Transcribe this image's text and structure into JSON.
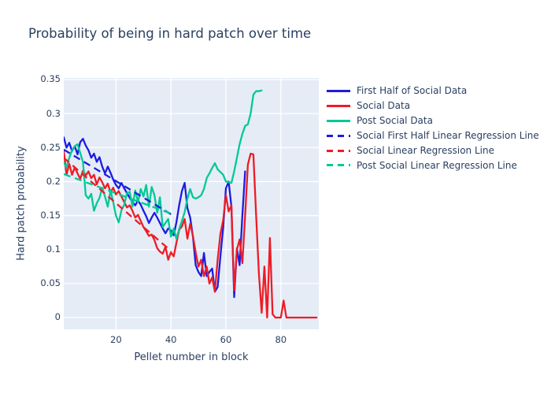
{
  "title": "Probability of being in hard patch over time",
  "colors": {
    "blue": "#1c1ce0",
    "red": "#ee1c25",
    "teal": "#00c996",
    "text": "#2a3f5f",
    "plot_background": "#e5ecf6",
    "gridline": "#ffffff"
  },
  "chart_data": {
    "type": "line",
    "title": "Probability of being in hard patch over time",
    "xlabel": "Pellet number in block",
    "ylabel": "Hard patch probability",
    "xlim": [
      1,
      93.8
    ],
    "ylim": [
      -0.0174,
      0.3523
    ],
    "grid": true,
    "legend_position": "right-outside",
    "x_ticks": [
      {
        "v": 20,
        "label": "20"
      },
      {
        "v": 40,
        "label": "40"
      },
      {
        "v": 60,
        "label": "60"
      },
      {
        "v": 80,
        "label": "80"
      }
    ],
    "y_ticks": [
      {
        "v": 0,
        "label": "0"
      },
      {
        "v": 0.05,
        "label": "0.05"
      },
      {
        "v": 0.1,
        "label": "0.1"
      },
      {
        "v": 0.15,
        "label": "0.15"
      },
      {
        "v": 0.2,
        "label": "0.2"
      },
      {
        "v": 0.25,
        "label": "0.25"
      },
      {
        "v": 0.3,
        "label": "0.3"
      },
      {
        "v": 0.35,
        "label": "0.35"
      }
    ],
    "series": [
      {
        "name": "First Half of Social Data",
        "color": "#1c1ce0",
        "dash": false,
        "x_start": 1,
        "values": [
          0.265,
          0.25,
          0.257,
          0.245,
          0.252,
          0.24,
          0.258,
          0.263,
          0.253,
          0.246,
          0.235,
          0.241,
          0.229,
          0.236,
          0.222,
          0.212,
          0.222,
          0.213,
          0.203,
          0.195,
          0.19,
          0.198,
          0.19,
          0.183,
          0.176,
          0.17,
          0.165,
          0.172,
          0.166,
          0.157,
          0.149,
          0.139,
          0.147,
          0.154,
          0.147,
          0.139,
          0.131,
          0.124,
          0.131,
          0.128,
          0.121,
          0.14,
          0.165,
          0.186,
          0.198,
          0.161,
          0.147,
          0.119,
          0.077,
          0.067,
          0.061,
          0.095,
          0.061,
          0.067,
          0.072,
          0.038,
          0.045,
          0.09,
          0.132,
          0.19,
          0.2,
          0.163,
          0.03,
          0.102,
          0.077,
          0.15,
          0.215
        ]
      },
      {
        "name": "Social Data",
        "color": "#ee1c25",
        "dash": false,
        "x_start": 1,
        "values": [
          0.245,
          0.21,
          0.226,
          0.21,
          0.221,
          0.212,
          0.204,
          0.216,
          0.209,
          0.215,
          0.205,
          0.21,
          0.196,
          0.206,
          0.199,
          0.19,
          0.197,
          0.184,
          0.191,
          0.181,
          0.186,
          0.178,
          0.17,
          0.162,
          0.165,
          0.157,
          0.147,
          0.151,
          0.142,
          0.133,
          0.127,
          0.12,
          0.122,
          0.114,
          0.102,
          0.097,
          0.094,
          0.104,
          0.085,
          0.096,
          0.09,
          0.11,
          0.129,
          0.134,
          0.145,
          0.116,
          0.138,
          0.12,
          0.096,
          0.075,
          0.085,
          0.061,
          0.075,
          0.05,
          0.059,
          0.038,
          0.085,
          0.123,
          0.143,
          0.18,
          0.156,
          0.165,
          0.04,
          0.1,
          0.115,
          0.08,
          0.15,
          0.225,
          0.241,
          0.24,
          0.15,
          0.065,
          0.007,
          0.075,
          0.0,
          0.117,
          0.005,
          0.0,
          0.0,
          0.0,
          0.025,
          0.0,
          0.0,
          0.0,
          0.0,
          0.0,
          0.0,
          0.0,
          0.0,
          0.0,
          0.0,
          0.0,
          0.0
        ]
      },
      {
        "name": "Post Social Data",
        "color": "#00c996",
        "dash": false,
        "x_start": 1,
        "values": [
          0.228,
          0.221,
          0.235,
          0.246,
          0.252,
          0.255,
          0.242,
          0.229,
          0.18,
          0.175,
          0.182,
          0.157,
          0.168,
          0.176,
          0.191,
          0.178,
          0.163,
          0.187,
          0.17,
          0.15,
          0.14,
          0.158,
          0.166,
          0.183,
          0.185,
          0.163,
          0.187,
          0.17,
          0.189,
          0.178,
          0.195,
          0.163,
          0.192,
          0.18,
          0.154,
          0.177,
          0.133,
          0.139,
          0.145,
          0.119,
          0.131,
          0.116,
          0.13,
          0.142,
          0.155,
          0.175,
          0.189,
          0.177,
          0.175,
          0.177,
          0.18,
          0.189,
          0.205,
          0.212,
          0.22,
          0.227,
          0.218,
          0.214,
          0.21,
          0.2,
          0.199,
          0.198,
          0.215,
          0.235,
          0.255,
          0.27,
          0.282,
          0.284,
          0.3,
          0.328,
          0.333,
          0.333,
          0.334
        ]
      },
      {
        "name": "Social First Half Linear Regression Line",
        "color": "#1c1ce0",
        "dash": true,
        "line": {
          "x1": 1,
          "y1": 0.247,
          "x2": 40,
          "y2": 0.152
        }
      },
      {
        "name": "Social Linear Regression Line",
        "color": "#ee1c25",
        "dash": true,
        "line": {
          "x1": 1,
          "y1": 0.235,
          "x2": 40,
          "y2": 0.098
        }
      },
      {
        "name": "Post Social Linear Regression Line",
        "color": "#00c996",
        "dash": true,
        "line": {
          "x1": 1,
          "y1": 0.211,
          "x2": 40,
          "y2": 0.153
        }
      }
    ]
  }
}
